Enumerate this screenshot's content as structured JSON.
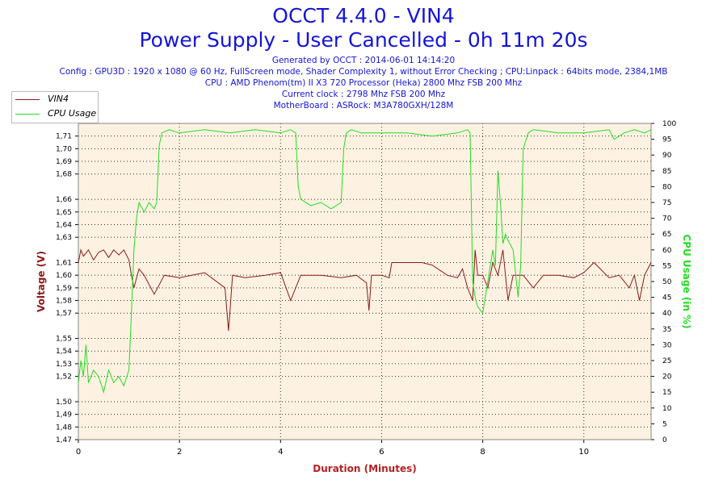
{
  "header": {
    "title": "OCCT 4.4.0 - VIN4",
    "subtitle": "Power Supply - User Cancelled - 0h 11m 20s",
    "generated": "Generated by OCCT : 2014-06-01 14:14:20",
    "config": "Config : GPU3D : 1920 x 1080 @ 60 Hz, FullScreen mode, Shader Complexity 1, without Error Checking ; CPU:Linpack : 64bits mode, 2384,1MB",
    "cpu": "CPU : AMD Phenom(tm) II X3 720 Processor (Heka) 2800 Mhz FSB 200 Mhz",
    "clock": "Current clock : 2798 Mhz FSB 200 Mhz",
    "motherboard": "MotherBoard : ASRock: M3A780GXH/128M"
  },
  "legend": [
    {
      "label": "VIN4",
      "color": "#8b1a1a"
    },
    {
      "label": "CPU Usage",
      "color": "#22dd22"
    }
  ],
  "chart_data": {
    "type": "line",
    "xlabel": "Duration (Minutes)",
    "ylabel_left": "Voltage (V)",
    "ylabel_right": "CPU Usage (in %)",
    "xlim": [
      0,
      11.33
    ],
    "ylim_left": [
      1.47,
      1.72
    ],
    "ylim_right": [
      0,
      100
    ],
    "x_ticks": [
      "0",
      "2",
      "4",
      "6",
      "8",
      "10"
    ],
    "y_left_ticks": [
      "1,47",
      "1,48",
      "1,49",
      "1,50",
      "1,52",
      "1,53",
      "1,54",
      "1,55",
      "1,57",
      "1,58",
      "1,59",
      "1,60",
      "1,61",
      "1,63",
      "1,64",
      "1,65",
      "1,66",
      "1,68",
      "1,69",
      "1,70",
      "1,71"
    ],
    "y_right_ticks": [
      "0",
      "5",
      "10",
      "15",
      "20",
      "25",
      "30",
      "35",
      "40",
      "45",
      "50",
      "55",
      "60",
      "65",
      "70",
      "75",
      "80",
      "85",
      "90",
      "95",
      "100"
    ],
    "grid": true,
    "legend_position": "top-left",
    "series": [
      {
        "name": "VIN4",
        "color": "#8b1a1a",
        "x": [
          0,
          0.05,
          0.1,
          0.2,
          0.3,
          0.4,
          0.5,
          0.6,
          0.7,
          0.8,
          0.9,
          1.0,
          1.05,
          1.1,
          1.2,
          1.3,
          1.5,
          1.7,
          2.0,
          2.5,
          2.9,
          2.97,
          3.05,
          3.3,
          3.7,
          4.0,
          4.2,
          4.4,
          4.8,
          5.2,
          5.5,
          5.7,
          5.75,
          5.8,
          6.0,
          6.15,
          6.2,
          6.4,
          6.8,
          7.0,
          7.3,
          7.5,
          7.6,
          7.7,
          7.8,
          7.85,
          7.9,
          8.0,
          8.1,
          8.2,
          8.3,
          8.4,
          8.5,
          8.6,
          8.8,
          9.0,
          9.2,
          9.5,
          9.8,
          9.9,
          10.0,
          10.2,
          10.5,
          10.7,
          10.9,
          11.0,
          11.1,
          11.2,
          11.33
        ],
        "y": [
          1.61,
          1.62,
          1.615,
          1.62,
          1.612,
          1.618,
          1.62,
          1.614,
          1.62,
          1.616,
          1.62,
          1.612,
          1.6,
          1.59,
          1.605,
          1.6,
          1.585,
          1.6,
          1.598,
          1.602,
          1.59,
          1.556,
          1.6,
          1.598,
          1.6,
          1.602,
          1.58,
          1.6,
          1.6,
          1.598,
          1.6,
          1.594,
          1.572,
          1.6,
          1.6,
          1.598,
          1.61,
          1.61,
          1.61,
          1.608,
          1.6,
          1.598,
          1.605,
          1.59,
          1.58,
          1.62,
          1.6,
          1.6,
          1.59,
          1.61,
          1.6,
          1.62,
          1.58,
          1.6,
          1.6,
          1.59,
          1.6,
          1.6,
          1.598,
          1.6,
          1.602,
          1.61,
          1.598,
          1.6,
          1.59,
          1.6,
          1.58,
          1.6,
          1.61
        ]
      },
      {
        "name": "CPU Usage",
        "color": "#22dd22",
        "x": [
          0,
          0.05,
          0.1,
          0.15,
          0.2,
          0.3,
          0.4,
          0.5,
          0.6,
          0.7,
          0.8,
          0.9,
          1.0,
          1.05,
          1.1,
          1.15,
          1.2,
          1.3,
          1.4,
          1.5,
          1.55,
          1.6,
          1.65,
          1.8,
          2.0,
          2.5,
          3.0,
          3.5,
          4.0,
          4.2,
          4.3,
          4.35,
          4.4,
          4.6,
          4.8,
          5.0,
          5.2,
          5.25,
          5.3,
          5.4,
          5.6,
          6.0,
          6.5,
          7.0,
          7.5,
          7.7,
          7.75,
          7.8,
          7.85,
          7.9,
          8.0,
          8.1,
          8.2,
          8.25,
          8.3,
          8.35,
          8.4,
          8.45,
          8.5,
          8.6,
          8.7,
          8.75,
          8.8,
          8.9,
          9.0,
          9.5,
          10.0,
          10.5,
          10.6,
          10.7,
          10.8,
          11.0,
          11.2,
          11.33
        ],
        "y": [
          18,
          25,
          20,
          30,
          18,
          22,
          20,
          15,
          22,
          18,
          20,
          17,
          22,
          40,
          60,
          70,
          75,
          72,
          75,
          73,
          75,
          93,
          97,
          98,
          97,
          98,
          97,
          98,
          97,
          98,
          97,
          80,
          76,
          74,
          75,
          73,
          75,
          92,
          97,
          98,
          97,
          97,
          97,
          96,
          97,
          98,
          97,
          50,
          45,
          42,
          40,
          50,
          60,
          55,
          85,
          75,
          62,
          65,
          63,
          60,
          45,
          55,
          92,
          97,
          98,
          97,
          97,
          98,
          95,
          96,
          97,
          98,
          97,
          98
        ]
      }
    ]
  }
}
